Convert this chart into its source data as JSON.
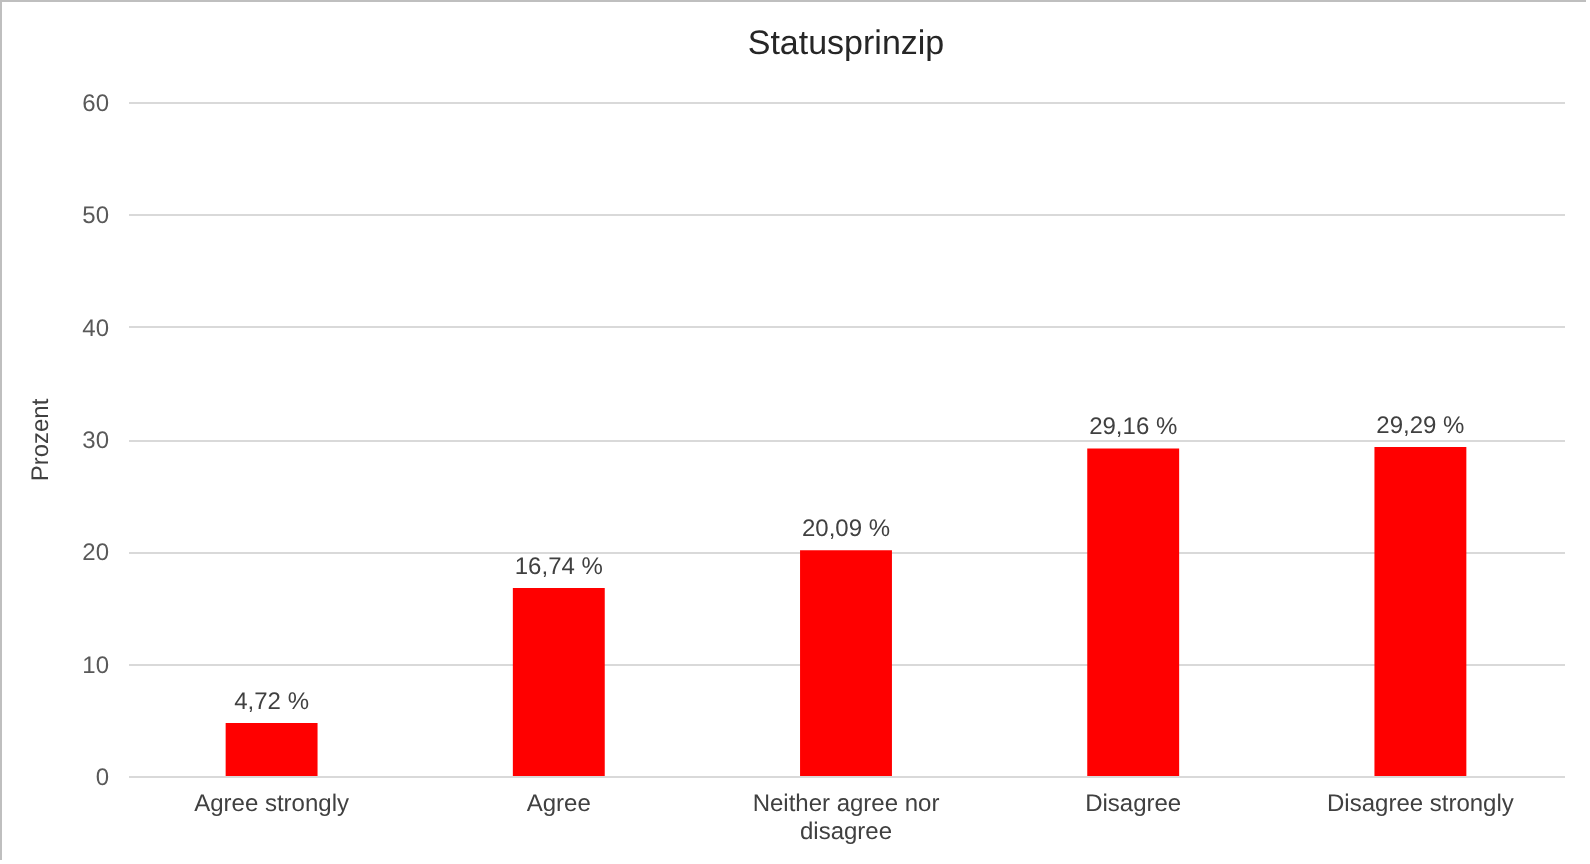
{
  "chart_data": {
    "type": "bar",
    "title": "Statusprinzip",
    "ylabel": "Prozent",
    "categories": [
      "Agree strongly",
      "Agree",
      "Neither agree nor disagree",
      "Disagree",
      "Disagree strongly"
    ],
    "values": [
      4.72,
      16.74,
      20.09,
      29.16,
      29.29
    ],
    "value_labels": [
      "4,72 %",
      "16,74 %",
      "20,09 %",
      "29,16 %",
      "29,29 %"
    ],
    "color": "#ff0000",
    "ylim": [
      0,
      60
    ],
    "yticks": [
      0,
      10,
      20,
      30,
      40,
      50,
      60
    ],
    "grid": "y"
  }
}
